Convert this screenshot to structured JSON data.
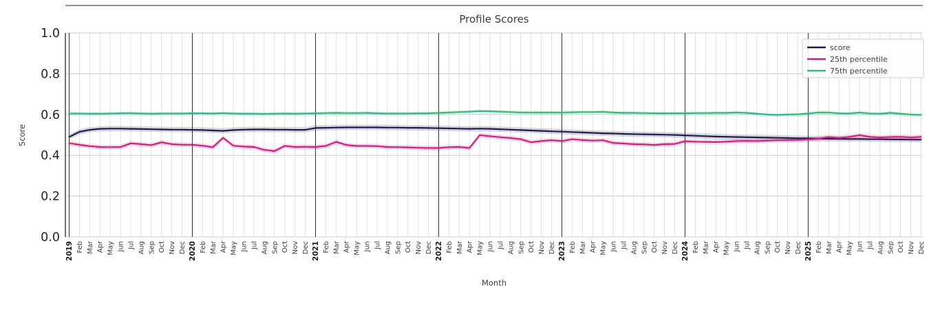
{
  "chart_data": {
    "type": "line",
    "title": "Profile Scores",
    "xlabel": "Month",
    "ylabel": "Score",
    "ylim": [
      0.0,
      1.0
    ],
    "yticks": [
      0.0,
      0.2,
      0.4,
      0.6,
      0.8,
      1.0
    ],
    "ytick_labels": [
      "0.0",
      "0.2",
      "0.4",
      "0.6",
      "0.8",
      "1.0"
    ],
    "grid": true,
    "legend_position": "upper right",
    "year_start_indices": [
      0,
      12,
      24,
      36,
      48,
      60,
      72
    ],
    "x_labels": [
      "2019",
      "Feb",
      "Mar",
      "Apr",
      "May",
      "Jun",
      "Jul",
      "Aug",
      "Sep",
      "Oct",
      "Nov",
      "Dec",
      "2020",
      "Feb",
      "Mar",
      "Apr",
      "May",
      "Jun",
      "Jul",
      "Aug",
      "Sep",
      "Oct",
      "Nov",
      "Dec",
      "2021",
      "Feb",
      "Mar",
      "Apr",
      "May",
      "Jun",
      "Jul",
      "Aug",
      "Sep",
      "Oct",
      "Nov",
      "Dec",
      "2022",
      "Feb",
      "Mar",
      "Apr",
      "May",
      "Jun",
      "Jul",
      "Aug",
      "Sep",
      "Oct",
      "Nov",
      "Dec",
      "2023",
      "Feb",
      "Mar",
      "Apr",
      "May",
      "Jun",
      "Jul",
      "Aug",
      "Sep",
      "Oct",
      "Nov",
      "Dec",
      "2024",
      "Feb",
      "Mar",
      "Apr",
      "May",
      "Jun",
      "Jul",
      "Aug",
      "Sep",
      "Oct",
      "Nov",
      "Dec",
      "2025",
      "Feb",
      "Mar",
      "Apr",
      "May",
      "Jun",
      "Jul",
      "Aug",
      "Sep",
      "Oct",
      "Nov",
      "Dec"
    ],
    "series": [
      {
        "name": "score",
        "color": "#1c1c4d",
        "band": 0.013,
        "values": [
          0.49,
          0.515,
          0.525,
          0.53,
          0.531,
          0.531,
          0.53,
          0.529,
          0.528,
          0.527,
          0.526,
          0.526,
          0.525,
          0.524,
          0.522,
          0.52,
          0.524,
          0.526,
          0.527,
          0.527,
          0.526,
          0.526,
          0.525,
          0.525,
          0.534,
          0.535,
          0.536,
          0.537,
          0.537,
          0.537,
          0.537,
          0.536,
          0.536,
          0.535,
          0.535,
          0.534,
          0.533,
          0.532,
          0.531,
          0.53,
          0.531,
          0.53,
          0.528,
          0.526,
          0.524,
          0.522,
          0.52,
          0.518,
          0.516,
          0.514,
          0.512,
          0.51,
          0.508,
          0.507,
          0.505,
          0.504,
          0.503,
          0.502,
          0.501,
          0.5,
          0.498,
          0.496,
          0.494,
          0.492,
          0.491,
          0.49,
          0.489,
          0.488,
          0.487,
          0.486,
          0.485,
          0.484,
          0.483,
          0.482,
          0.481,
          0.481,
          0.48,
          0.48,
          0.479,
          0.479,
          0.478,
          0.478,
          0.477,
          0.477
        ]
      },
      {
        "name": "25th percentile",
        "color": "#d81b7d",
        "band": 0.011,
        "values": [
          0.46,
          0.452,
          0.445,
          0.441,
          0.44,
          0.441,
          0.459,
          0.455,
          0.45,
          0.464,
          0.455,
          0.452,
          0.452,
          0.447,
          0.44,
          0.486,
          0.447,
          0.443,
          0.441,
          0.427,
          0.421,
          0.446,
          0.441,
          0.442,
          0.441,
          0.446,
          0.466,
          0.451,
          0.446,
          0.446,
          0.445,
          0.441,
          0.44,
          0.439,
          0.437,
          0.436,
          0.436,
          0.44,
          0.441,
          0.436,
          0.499,
          0.494,
          0.489,
          0.485,
          0.479,
          0.464,
          0.47,
          0.474,
          0.47,
          0.479,
          0.475,
          0.472,
          0.474,
          0.461,
          0.458,
          0.455,
          0.454,
          0.451,
          0.455,
          0.456,
          0.469,
          0.467,
          0.466,
          0.465,
          0.467,
          0.47,
          0.471,
          0.47,
          0.472,
          0.474,
          0.475,
          0.476,
          0.478,
          0.481,
          0.49,
          0.485,
          0.491,
          0.499,
          0.491,
          0.488,
          0.49,
          0.491,
          0.488,
          0.491
        ]
      },
      {
        "name": "75th percentile",
        "color": "#2bbd7a",
        "band": 0.008,
        "values": [
          0.605,
          0.605,
          0.604,
          0.604,
          0.605,
          0.606,
          0.607,
          0.605,
          0.604,
          0.605,
          0.605,
          0.605,
          0.606,
          0.606,
          0.605,
          0.607,
          0.605,
          0.604,
          0.604,
          0.603,
          0.604,
          0.605,
          0.604,
          0.605,
          0.606,
          0.607,
          0.608,
          0.607,
          0.607,
          0.608,
          0.606,
          0.605,
          0.605,
          0.605,
          0.606,
          0.606,
          0.608,
          0.61,
          0.612,
          0.614,
          0.617,
          0.616,
          0.614,
          0.612,
          0.61,
          0.61,
          0.61,
          0.61,
          0.61,
          0.611,
          0.612,
          0.612,
          0.613,
          0.61,
          0.608,
          0.608,
          0.607,
          0.606,
          0.606,
          0.606,
          0.606,
          0.607,
          0.607,
          0.608,
          0.608,
          0.61,
          0.608,
          0.604,
          0.6,
          0.598,
          0.6,
          0.601,
          0.605,
          0.61,
          0.61,
          0.606,
          0.605,
          0.61,
          0.605,
          0.604,
          0.608,
          0.604,
          0.6,
          0.598
        ]
      }
    ],
    "colors": {
      "grid": "#cccccc",
      "minor_grid": "#d9d9d9",
      "year_line": "#2e2e2e",
      "spine": "#262626",
      "text": "#3d3d3d",
      "tick_text": "#262626",
      "legend_border": "#cccccc"
    }
  }
}
